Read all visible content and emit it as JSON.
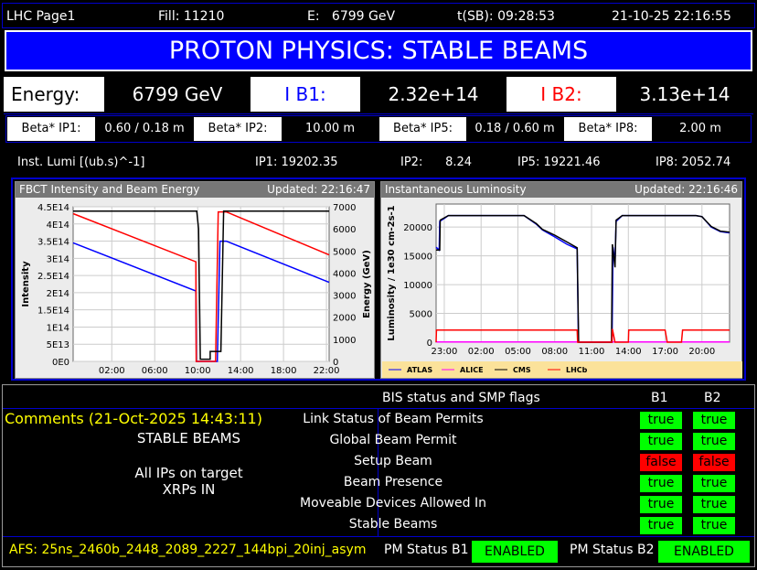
{
  "header": {
    "page": "LHC Page1",
    "fill": "Fill: 11210",
    "energy": "E:   6799 GeV",
    "tsb": "t(SB): 09:28:53",
    "datetime": "21-10-25 22:16:55"
  },
  "banner": {
    "text": "PROTON PHYSICS: STABLE BEAMS",
    "color": "#0000ff"
  },
  "energy_row": {
    "energy_label": "Energy:",
    "energy_value": "6799 GeV",
    "ib1_label": "I B1:",
    "ib1_value": "2.32e+14",
    "ib2_label": "I B2:",
    "ib2_value": "3.13e+14"
  },
  "beta": [
    {
      "label": "Beta* IP1:",
      "value": "0.60 / 0.18 m"
    },
    {
      "label": "Beta* IP2:",
      "value": "10.00 m"
    },
    {
      "label": "Beta* IP5:",
      "value": "0.18 / 0.60 m"
    },
    {
      "label": "Beta* IP8:",
      "value": "2.00 m"
    }
  ],
  "lumi": {
    "label": "Inst. Lumi [(ub.s)^-1]",
    "ip1": "IP1: 19202.35",
    "ip2": "IP2:      8.24",
    "ip5": "IP5: 19221.46",
    "ip8": "IP8:  2052.74"
  },
  "chart_data": [
    {
      "type": "line",
      "title": "FBCT Intensity and Beam Energy",
      "updated": "Updated: 22:16:47",
      "ylabel": "Intensity",
      "y2label": "Energy (GeV)",
      "xlim": [
        "22:24",
        "22:15"
      ],
      "xticks": [
        "02:00",
        "06:00",
        "10:00",
        "14:00",
        "18:00",
        "22:00"
      ],
      "ylim": [
        0,
        450000000000000.0
      ],
      "yticks": [
        "0E0",
        "5E13",
        "1E14",
        "1.5E14",
        "2E14",
        "2.5E14",
        "3E14",
        "3.5E14",
        "4E14",
        "4.5E14"
      ],
      "y2lim": [
        0,
        7000
      ],
      "y2ticks": [
        "0",
        "1000",
        "2000",
        "3000",
        "4000",
        "5000",
        "6000",
        "7000"
      ],
      "grid": true,
      "series": [
        {
          "color": "#0000ff",
          "axis": "left",
          "points": [
            [
              "22:24",
              345000000000000.0
            ],
            [
              "09:50",
              205000000000000.0
            ],
            [
              "09:53",
              0
            ],
            [
              "11:50",
              0
            ],
            [
              "12:05",
              350000000000000.0
            ],
            [
              "12:40",
              350000000000000.0
            ],
            [
              "22:15",
              230000000000000.0
            ]
          ]
        },
        {
          "color": "#ff0000",
          "axis": "left",
          "points": [
            [
              "22:24",
              430000000000000.0
            ],
            [
              "09:50",
              290000000000000.0
            ],
            [
              "09:52",
              0
            ],
            [
              "11:40",
              0
            ],
            [
              "11:55",
              435000000000000.0
            ],
            [
              "12:40",
              435000000000000.0
            ],
            [
              "22:15",
              310000000000000.0
            ]
          ]
        },
        {
          "color": "#000000",
          "axis": "right",
          "points": [
            [
              "22:24",
              6800
            ],
            [
              "09:55",
              6800
            ],
            [
              "10:05",
              6000
            ],
            [
              "10:15",
              100
            ],
            [
              "11:10",
              100
            ],
            [
              "11:10",
              450
            ],
            [
              "12:10",
              450
            ],
            [
              "12:25",
              6800
            ],
            [
              "22:15",
              6800
            ]
          ]
        }
      ]
    },
    {
      "type": "line",
      "title": "Instantaneous Luminosity",
      "updated": "Updated: 22:16:46",
      "ylabel": "Luminosity / 1e30 cm-2s-1",
      "xlim": [
        "22:20",
        "22:15"
      ],
      "xticks": [
        "23:00",
        "02:00",
        "05:00",
        "08:00",
        "11:00",
        "14:00",
        "17:00",
        "20:00"
      ],
      "ylim": [
        0,
        24000
      ],
      "yticks": [
        "0",
        "5000",
        "10000",
        "15000",
        "20000"
      ],
      "grid": true,
      "legend": "bottom",
      "series": [
        {
          "name": "ATLAS",
          "color": "#0000ff",
          "points": [
            [
              "22:20",
              16500
            ],
            [
              "22:35",
              16000
            ],
            [
              "22:38",
              21000
            ],
            [
              "23:00",
              21500
            ],
            [
              "23:20",
              22000
            ],
            [
              "05:30",
              22000
            ],
            [
              "06:30",
              20500
            ],
            [
              "07:00",
              19500
            ],
            [
              "08:00",
              18300
            ],
            [
              "09:00",
              17000
            ],
            [
              "09:50",
              16200
            ],
            [
              "09:56",
              0
            ],
            [
              "12:40",
              0
            ],
            [
              "12:45",
              16500
            ],
            [
              "12:55",
              14000
            ],
            [
              "13:00",
              21000
            ],
            [
              "13:30",
              22000
            ],
            [
              "19:30",
              22000
            ],
            [
              "20:00",
              21800
            ],
            [
              "20:45",
              20000
            ],
            [
              "21:30",
              19200
            ],
            [
              "22:15",
              19000
            ]
          ]
        },
        {
          "name": "ALICE",
          "color": "#ff00ff",
          "points": [
            [
              "22:20",
              30
            ],
            [
              "22:15",
              30
            ]
          ]
        },
        {
          "name": "CMS",
          "color": "#000000",
          "points": [
            [
              "22:20",
              16000
            ],
            [
              "22:38",
              16000
            ],
            [
              "22:40",
              21200
            ],
            [
              "23:00",
              21600
            ],
            [
              "23:20",
              22000
            ],
            [
              "05:30",
              22000
            ],
            [
              "06:30",
              20600
            ],
            [
              "07:00",
              19600
            ],
            [
              "08:00",
              18600
            ],
            [
              "09:00",
              17400
            ],
            [
              "09:50",
              16400
            ],
            [
              "09:57",
              0
            ],
            [
              "12:38",
              0
            ],
            [
              "12:42",
              17000
            ],
            [
              "12:55",
              13000
            ],
            [
              "13:00",
              21200
            ],
            [
              "13:30",
              22000
            ],
            [
              "19:30",
              22000
            ],
            [
              "20:00",
              21800
            ],
            [
              "20:45",
              20100
            ],
            [
              "21:30",
              19300
            ],
            [
              "22:15",
              19100
            ]
          ]
        },
        {
          "name": "LHCb",
          "color": "#ff0000",
          "points": [
            [
              "22:20",
              0
            ],
            [
              "22:22",
              2100
            ],
            [
              "09:50",
              2100
            ],
            [
              "09:52",
              0
            ],
            [
              "12:40",
              0
            ],
            [
              "12:42",
              2300
            ],
            [
              "12:55",
              0
            ],
            [
              "14:00",
              0
            ],
            [
              "14:02",
              2100
            ],
            [
              "17:00",
              2100
            ],
            [
              "17:10",
              0
            ],
            [
              "18:20",
              0
            ],
            [
              "18:25",
              2100
            ],
            [
              "22:15",
              2100
            ]
          ]
        }
      ]
    }
  ],
  "bis": {
    "title": "BIS status and SMP flags",
    "col_b1": "B1",
    "col_b2": "B2",
    "flags": [
      {
        "label": "Link Status of Beam Permits",
        "b1": "true",
        "b2": "true"
      },
      {
        "label": "Global Beam Permit",
        "b1": "true",
        "b2": "true"
      },
      {
        "label": "Setup Beam",
        "b1": "false",
        "b2": "false"
      },
      {
        "label": "Beam Presence",
        "b1": "true",
        "b2": "true"
      },
      {
        "label": "Moveable Devices Allowed In",
        "b1": "true",
        "b2": "true"
      },
      {
        "label": "Stable Beams",
        "b1": "true",
        "b2": "true"
      }
    ],
    "true_color": "#00ff00",
    "false_color": "#ff0000"
  },
  "comments": {
    "title": "Comments (21-Oct-2025 14:43:11)",
    "line1": "STABLE BEAMS",
    "line2": "All IPs on target",
    "line3": "XRPs IN"
  },
  "footer": {
    "afs": "AFS: 25ns_2460b_2448_2089_2227_144bpi_20inj_asym",
    "pm_b1_label": "PM Status B1",
    "pm_b1": "ENABLED",
    "pm_b2_label": "PM Status B2",
    "pm_b2": "ENABLED"
  }
}
